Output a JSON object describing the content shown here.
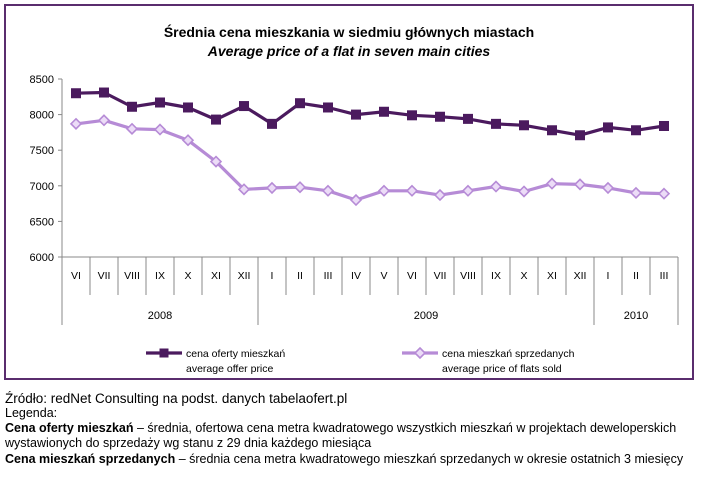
{
  "chart_data": {
    "type": "line",
    "title": "Średnia cena mieszkania w siedmiu głównych miastach",
    "subtitle": "Average price of a flat in seven main cities",
    "ylim": [
      6000,
      8500
    ],
    "yticks": [
      "8500",
      "8000",
      "7500",
      "7000",
      "6500",
      "6000"
    ],
    "months": [
      "VI",
      "VII",
      "VIII",
      "IX",
      "X",
      "XI",
      "XII",
      "I",
      "II",
      "III",
      "IV",
      "V",
      "VI",
      "VII",
      "VIII",
      "IX",
      "X",
      "XI",
      "XII",
      "I",
      "II",
      "III"
    ],
    "years": [
      {
        "label": "2008",
        "count": 7
      },
      {
        "label": "2009",
        "count": 12
      },
      {
        "label": "2010",
        "count": 3
      }
    ],
    "grid": false,
    "legend_position": "bottom",
    "series": [
      {
        "name": "cena oferty mieszkań",
        "name_en": "average offer price",
        "color": "#4b1a5e",
        "marker": "square",
        "values": [
          8300,
          8310,
          8110,
          8170,
          8100,
          7930,
          8120,
          7870,
          8160,
          8100,
          8000,
          8040,
          7990,
          7970,
          7940,
          7870,
          7850,
          7780,
          7710,
          7820,
          7780,
          7840
        ]
      },
      {
        "name": "cena mieszkań sprzedanych",
        "name_en": "average price of flats sold",
        "color": "#b68bd6",
        "marker": "diamond",
        "values": [
          7870,
          7920,
          7800,
          7790,
          7640,
          7340,
          6950,
          6970,
          6980,
          6930,
          6800,
          6930,
          6930,
          6870,
          6930,
          6990,
          6920,
          7030,
          7020,
          6970,
          6900,
          6890
        ]
      }
    ]
  },
  "caption": {
    "source": "Źródło: redNet Consulting na podst. danych tabelaofert.pl",
    "legend_heading": "Legenda:",
    "def1_term": "Cena oferty mieszkań",
    "def1_text": " – średnia, ofertowa cena metra kwadratowego wszystkich mieszkań w projektach deweloperskich wystawionych do sprzedaży wg stanu z 29 dnia każdego miesiąca",
    "def2_term": "Cena mieszkań sprzedanych",
    "def2_text": " – średnia cena metra kwadratowego mieszkań sprzedanych w okresie ostatnich 3 miesięcy"
  }
}
